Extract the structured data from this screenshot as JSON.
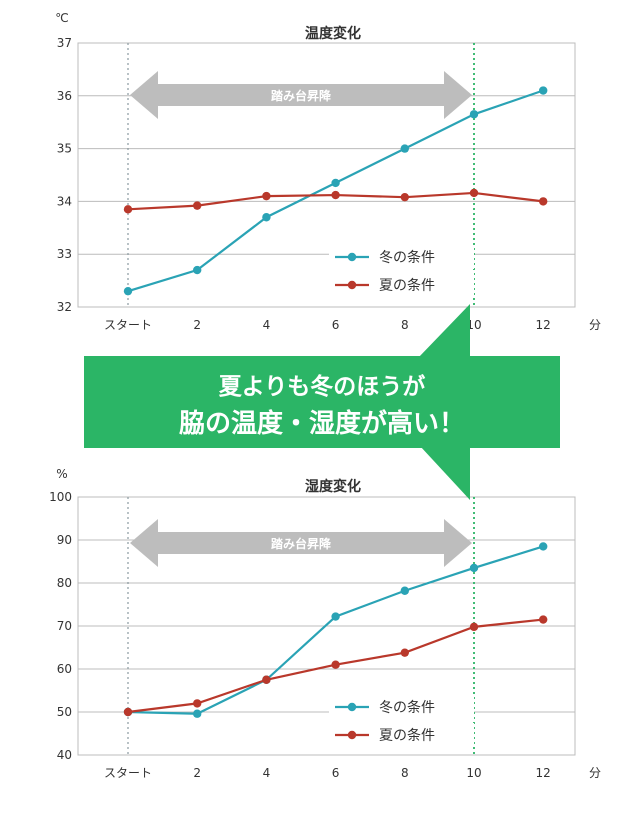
{
  "arrow_label": "踏み台昇降",
  "callout": {
    "line1": "夏よりも冬のほうが",
    "line2": "脇の温度・湿度が高い！"
  },
  "x_unit": "分",
  "colors": {
    "winter": "#2aa3b5",
    "summer": "#b9382b",
    "callout": "#2bb566",
    "arrow": "#bdbdbd",
    "grid": "#bcbcbc"
  },
  "chart_data": [
    {
      "type": "line",
      "title": "温度変化",
      "ylabel": "℃",
      "xlabel": "分",
      "categories": [
        "スタート",
        "2",
        "4",
        "6",
        "8",
        "10",
        "12"
      ],
      "ylim": [
        32,
        37
      ],
      "yticks": [
        "32",
        "33",
        "34",
        "35",
        "36",
        "37"
      ],
      "grid": true,
      "legend_position": "bottom-right",
      "series": [
        {
          "name": "冬の条件",
          "color": "#2aa3b5",
          "values": [
            32.3,
            32.7,
            33.7,
            34.35,
            35.0,
            35.65,
            36.1
          ]
        },
        {
          "name": "夏の条件",
          "color": "#b9382b",
          "values": [
            33.85,
            33.92,
            34.1,
            34.12,
            34.08,
            34.16,
            34.0
          ]
        }
      ]
    },
    {
      "type": "line",
      "title": "湿度変化",
      "ylabel": "%",
      "xlabel": "分",
      "categories": [
        "スタート",
        "2",
        "4",
        "6",
        "8",
        "10",
        "12"
      ],
      "ylim": [
        40,
        100
      ],
      "yticks": [
        "40",
        "50",
        "60",
        "70",
        "80",
        "90",
        "100"
      ],
      "grid": true,
      "legend_position": "bottom-right",
      "series": [
        {
          "name": "冬の条件",
          "color": "#2aa3b5",
          "values": [
            50,
            49.6,
            57.5,
            72.2,
            78.2,
            83.5,
            88.5
          ]
        },
        {
          "name": "夏の条件",
          "color": "#b9382b",
          "values": [
            50,
            52,
            57.5,
            61,
            63.8,
            69.8,
            71.5
          ]
        }
      ]
    }
  ]
}
